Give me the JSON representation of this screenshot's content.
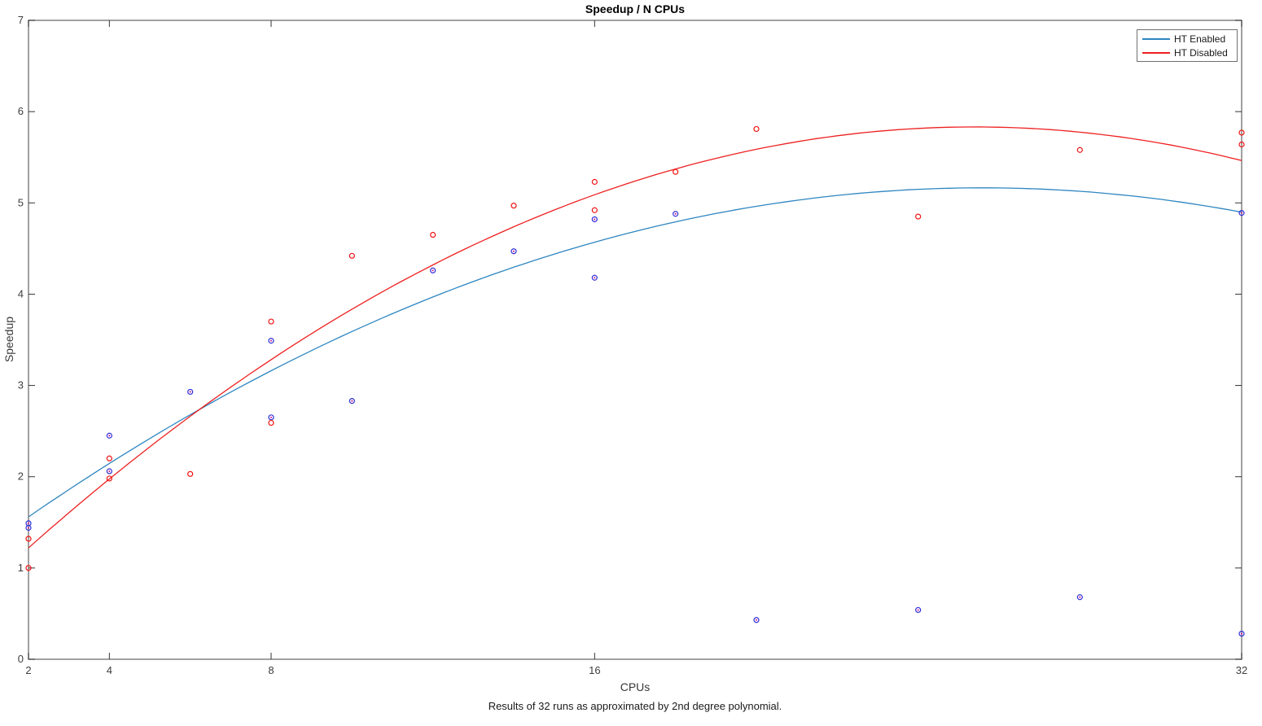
{
  "chart_data": {
    "type": "scatter",
    "title": "Speedup / N CPUs",
    "xlabel": "CPUs",
    "ylabel": "Speedup",
    "caption": "Results of 32 runs as approximated by 2nd degree polynomial.",
    "xlim": [
      2,
      32
    ],
    "ylim": [
      0,
      7
    ],
    "x_scale": "linear",
    "grid": false,
    "legend_position": "top-right",
    "x_ticks": {
      "values": [
        2,
        4,
        8,
        16,
        32
      ],
      "labels": [
        "2",
        "4",
        "8",
        "16",
        "32"
      ]
    },
    "y_ticks": {
      "values": [
        0,
        1,
        2,
        3,
        4,
        5,
        6,
        7
      ],
      "labels": [
        "0",
        "1",
        "2",
        "3",
        "4",
        "5",
        "6",
        "7"
      ]
    },
    "series": [
      {
        "name": "HT Enabled",
        "line_color": "#2e86c1",
        "marker_color": "#2e2ed6",
        "marker_center_color": "#c8148c",
        "fit_note": "y = a*x^2 + b*x + c",
        "fit": {
          "a": -0.00648,
          "b": 0.3316,
          "c": 0.9227
        },
        "points": [
          [
            2,
            1.49
          ],
          [
            2,
            1.44
          ],
          [
            4,
            2.45
          ],
          [
            4,
            2.06
          ],
          [
            6,
            2.93
          ],
          [
            8,
            3.49
          ],
          [
            8,
            2.65
          ],
          [
            10,
            2.83
          ],
          [
            12,
            4.26
          ],
          [
            14,
            4.47
          ],
          [
            16,
            4.82
          ],
          [
            16,
            4.18
          ],
          [
            18,
            4.88
          ],
          [
            20,
            0.43
          ],
          [
            24,
            0.54
          ],
          [
            28,
            0.68
          ],
          [
            32,
            4.89
          ],
          [
            32,
            0.28
          ]
        ]
      },
      {
        "name": "HT Disabled",
        "line_color": "#ee2020",
        "marker_color": "#f01414",
        "marker_center_color": null,
        "fit_note": "y = a*x^2 + b*x + c",
        "fit": {
          "a": -0.00843,
          "b": 0.4281,
          "c": 0.3974
        },
        "points": [
          [
            2,
            1.32
          ],
          [
            2,
            1.0
          ],
          [
            4,
            2.2
          ],
          [
            4,
            1.98
          ],
          [
            6,
            2.03
          ],
          [
            8,
            3.7
          ],
          [
            8,
            2.59
          ],
          [
            10,
            4.42
          ],
          [
            12,
            4.65
          ],
          [
            14,
            4.97
          ],
          [
            16,
            5.23
          ],
          [
            16,
            4.92
          ],
          [
            18,
            5.34
          ],
          [
            20,
            5.81
          ],
          [
            24,
            4.85
          ],
          [
            28,
            5.58
          ],
          [
            32,
            5.77
          ],
          [
            32,
            5.64
          ]
        ]
      }
    ]
  },
  "colors": {
    "background": "#ffffff",
    "axis_border": "#808080",
    "tick": "#333333",
    "tick_label": "#3d3d3d"
  }
}
